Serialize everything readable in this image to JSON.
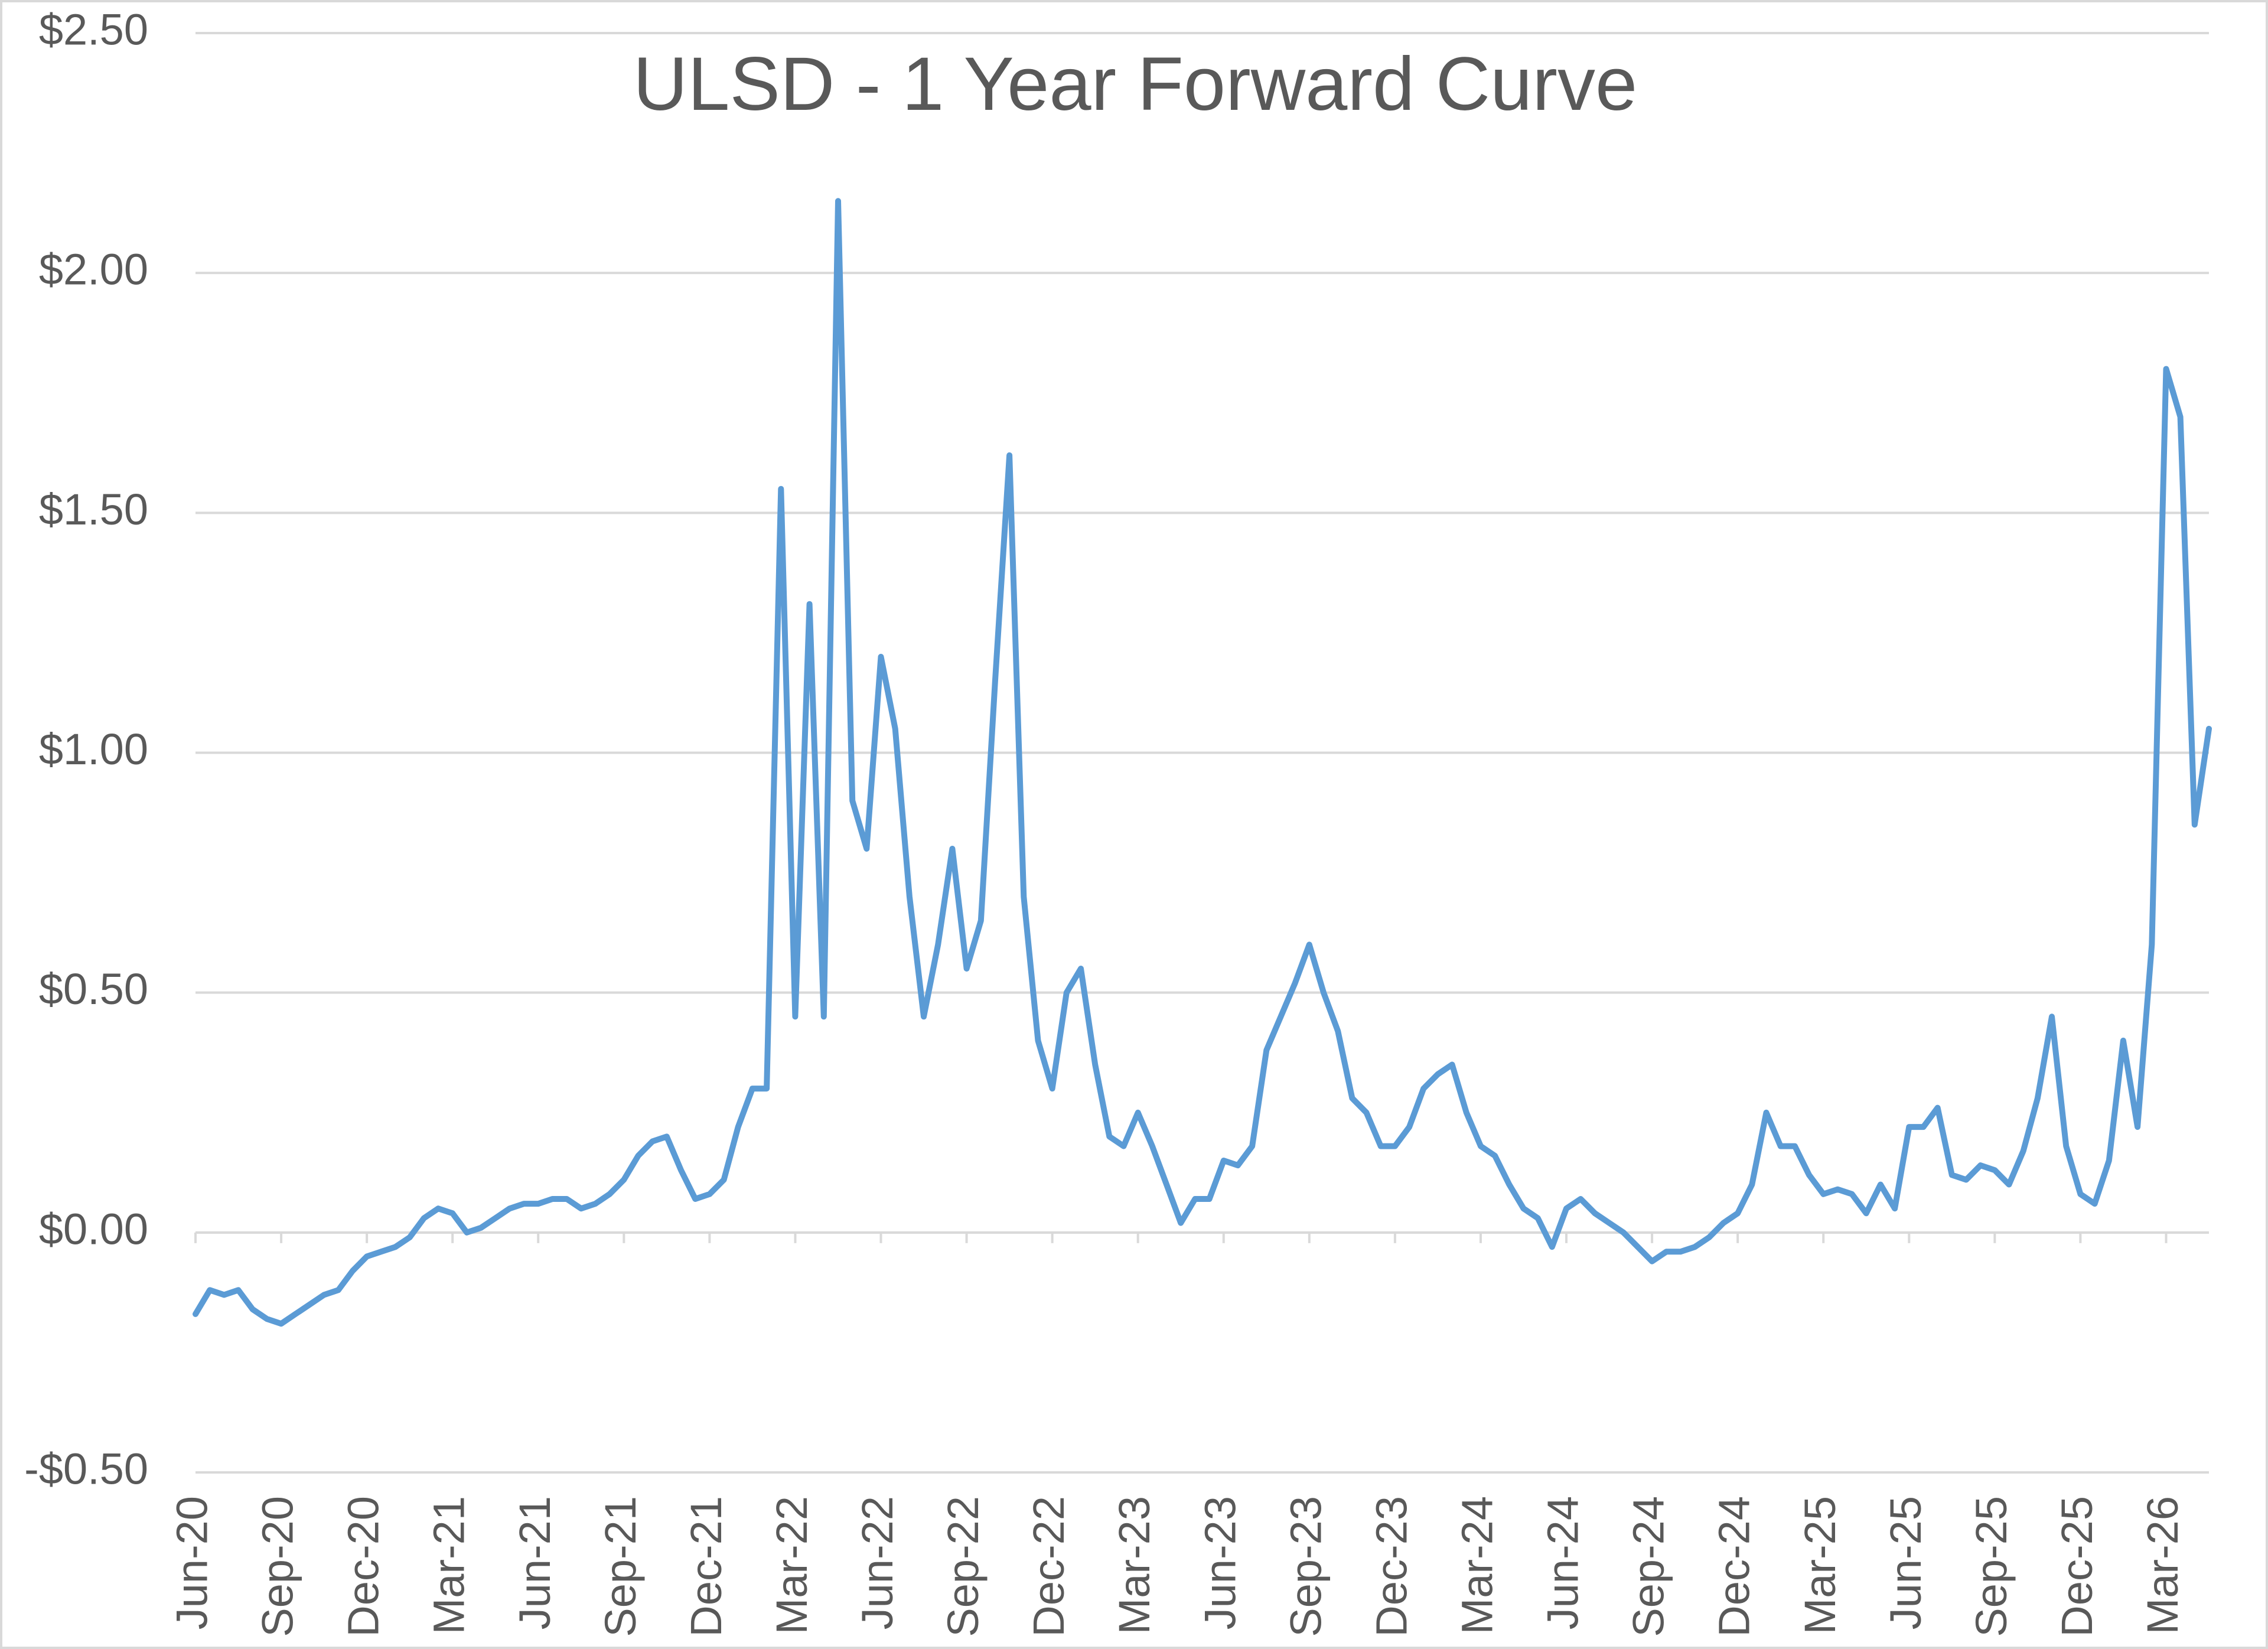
{
  "chart_data": {
    "type": "line",
    "title": "ULSD - 1 Year Forward Curve",
    "categories": [
      "Jun-20",
      null,
      null,
      null,
      null,
      null,
      "Sep-20",
      null,
      null,
      null,
      null,
      null,
      "Dec-20",
      null,
      null,
      null,
      null,
      null,
      "Mar-21",
      null,
      null,
      null,
      null,
      null,
      "Jun-21",
      null,
      null,
      null,
      null,
      null,
      "Sep-21",
      null,
      null,
      null,
      null,
      null,
      "Dec-21",
      null,
      null,
      null,
      null,
      null,
      "Mar-22",
      null,
      null,
      null,
      null,
      null,
      "Jun-22",
      null,
      null,
      null,
      null,
      null,
      "Sep-22",
      null,
      null,
      null,
      null,
      null,
      "Dec-22",
      null,
      null,
      null,
      null,
      null,
      "Mar-23",
      null,
      null,
      null,
      null,
      null,
      "Jun-23",
      null,
      null,
      null,
      null,
      null,
      "Sep-23",
      null,
      null,
      null,
      null,
      null,
      "Dec-23",
      null,
      null,
      null,
      null,
      null,
      "Mar-24",
      null,
      null,
      null,
      null,
      null,
      "Jun-24",
      null,
      null,
      null,
      null,
      null,
      "Sep-24",
      null,
      null,
      null,
      null,
      null,
      "Dec-24",
      null,
      null,
      null,
      null,
      null,
      "Mar-25",
      null,
      null,
      null,
      null,
      null,
      "Jun-25",
      null,
      null,
      null,
      null,
      null,
      "Sep-25",
      null,
      null,
      null,
      null,
      null,
      "Dec-25",
      null,
      null,
      null,
      null,
      null,
      "Mar-26",
      null,
      null,
      null
    ],
    "values": [
      -0.17,
      -0.12,
      -0.13,
      -0.12,
      -0.16,
      -0.18,
      -0.19,
      -0.17,
      -0.15,
      -0.13,
      -0.12,
      -0.08,
      -0.05,
      -0.04,
      -0.03,
      -0.01,
      0.03,
      0.05,
      0.04,
      0.0,
      0.01,
      0.03,
      0.05,
      0.06,
      0.06,
      0.07,
      0.07,
      0.05,
      0.06,
      0.08,
      0.11,
      0.16,
      0.19,
      0.2,
      0.13,
      0.07,
      0.08,
      0.11,
      0.22,
      0.3,
      0.3,
      1.55,
      0.45,
      1.31,
      0.45,
      2.15,
      0.9,
      0.8,
      1.2,
      1.05,
      0.7,
      0.45,
      0.6,
      0.8,
      0.55,
      0.65,
      1.15,
      1.62,
      0.7,
      0.4,
      0.3,
      0.5,
      0.55,
      0.35,
      0.2,
      0.18,
      0.25,
      0.18,
      0.1,
      0.02,
      0.07,
      0.07,
      0.15,
      0.14,
      0.18,
      0.38,
      0.45,
      0.52,
      0.6,
      0.5,
      0.42,
      0.28,
      0.25,
      0.18,
      0.18,
      0.22,
      0.3,
      0.33,
      0.35,
      0.25,
      0.18,
      0.16,
      0.1,
      0.05,
      0.03,
      -0.03,
      0.05,
      0.07,
      0.04,
      0.02,
      0.0,
      -0.03,
      -0.06,
      -0.04,
      -0.04,
      -0.03,
      -0.01,
      0.02,
      0.04,
      0.1,
      0.25,
      0.18,
      0.18,
      0.12,
      0.08,
      0.09,
      0.08,
      0.04,
      0.1,
      0.05,
      0.22,
      0.22,
      0.26,
      0.12,
      0.11,
      0.14,
      0.13,
      0.1,
      0.17,
      0.28,
      0.45,
      0.18,
      0.08,
      0.06,
      0.15,
      0.4,
      0.22,
      0.6,
      1.8,
      1.7,
      0.85,
      1.05
    ],
    "color": "#5b9bd5",
    "ylim": [
      -0.5,
      2.5
    ],
    "yticks": [
      {
        "value": -0.5,
        "label": "-$0.50"
      },
      {
        "value": 0,
        "label": "$0.00"
      },
      {
        "value": 0.5,
        "label": "$0.50"
      },
      {
        "value": 1,
        "label": "$1.00"
      },
      {
        "value": 1.5,
        "label": "$1.50"
      },
      {
        "value": 2,
        "label": "$2.00"
      },
      {
        "value": 2.5,
        "label": "$2.50"
      }
    ],
    "grid": true
  }
}
